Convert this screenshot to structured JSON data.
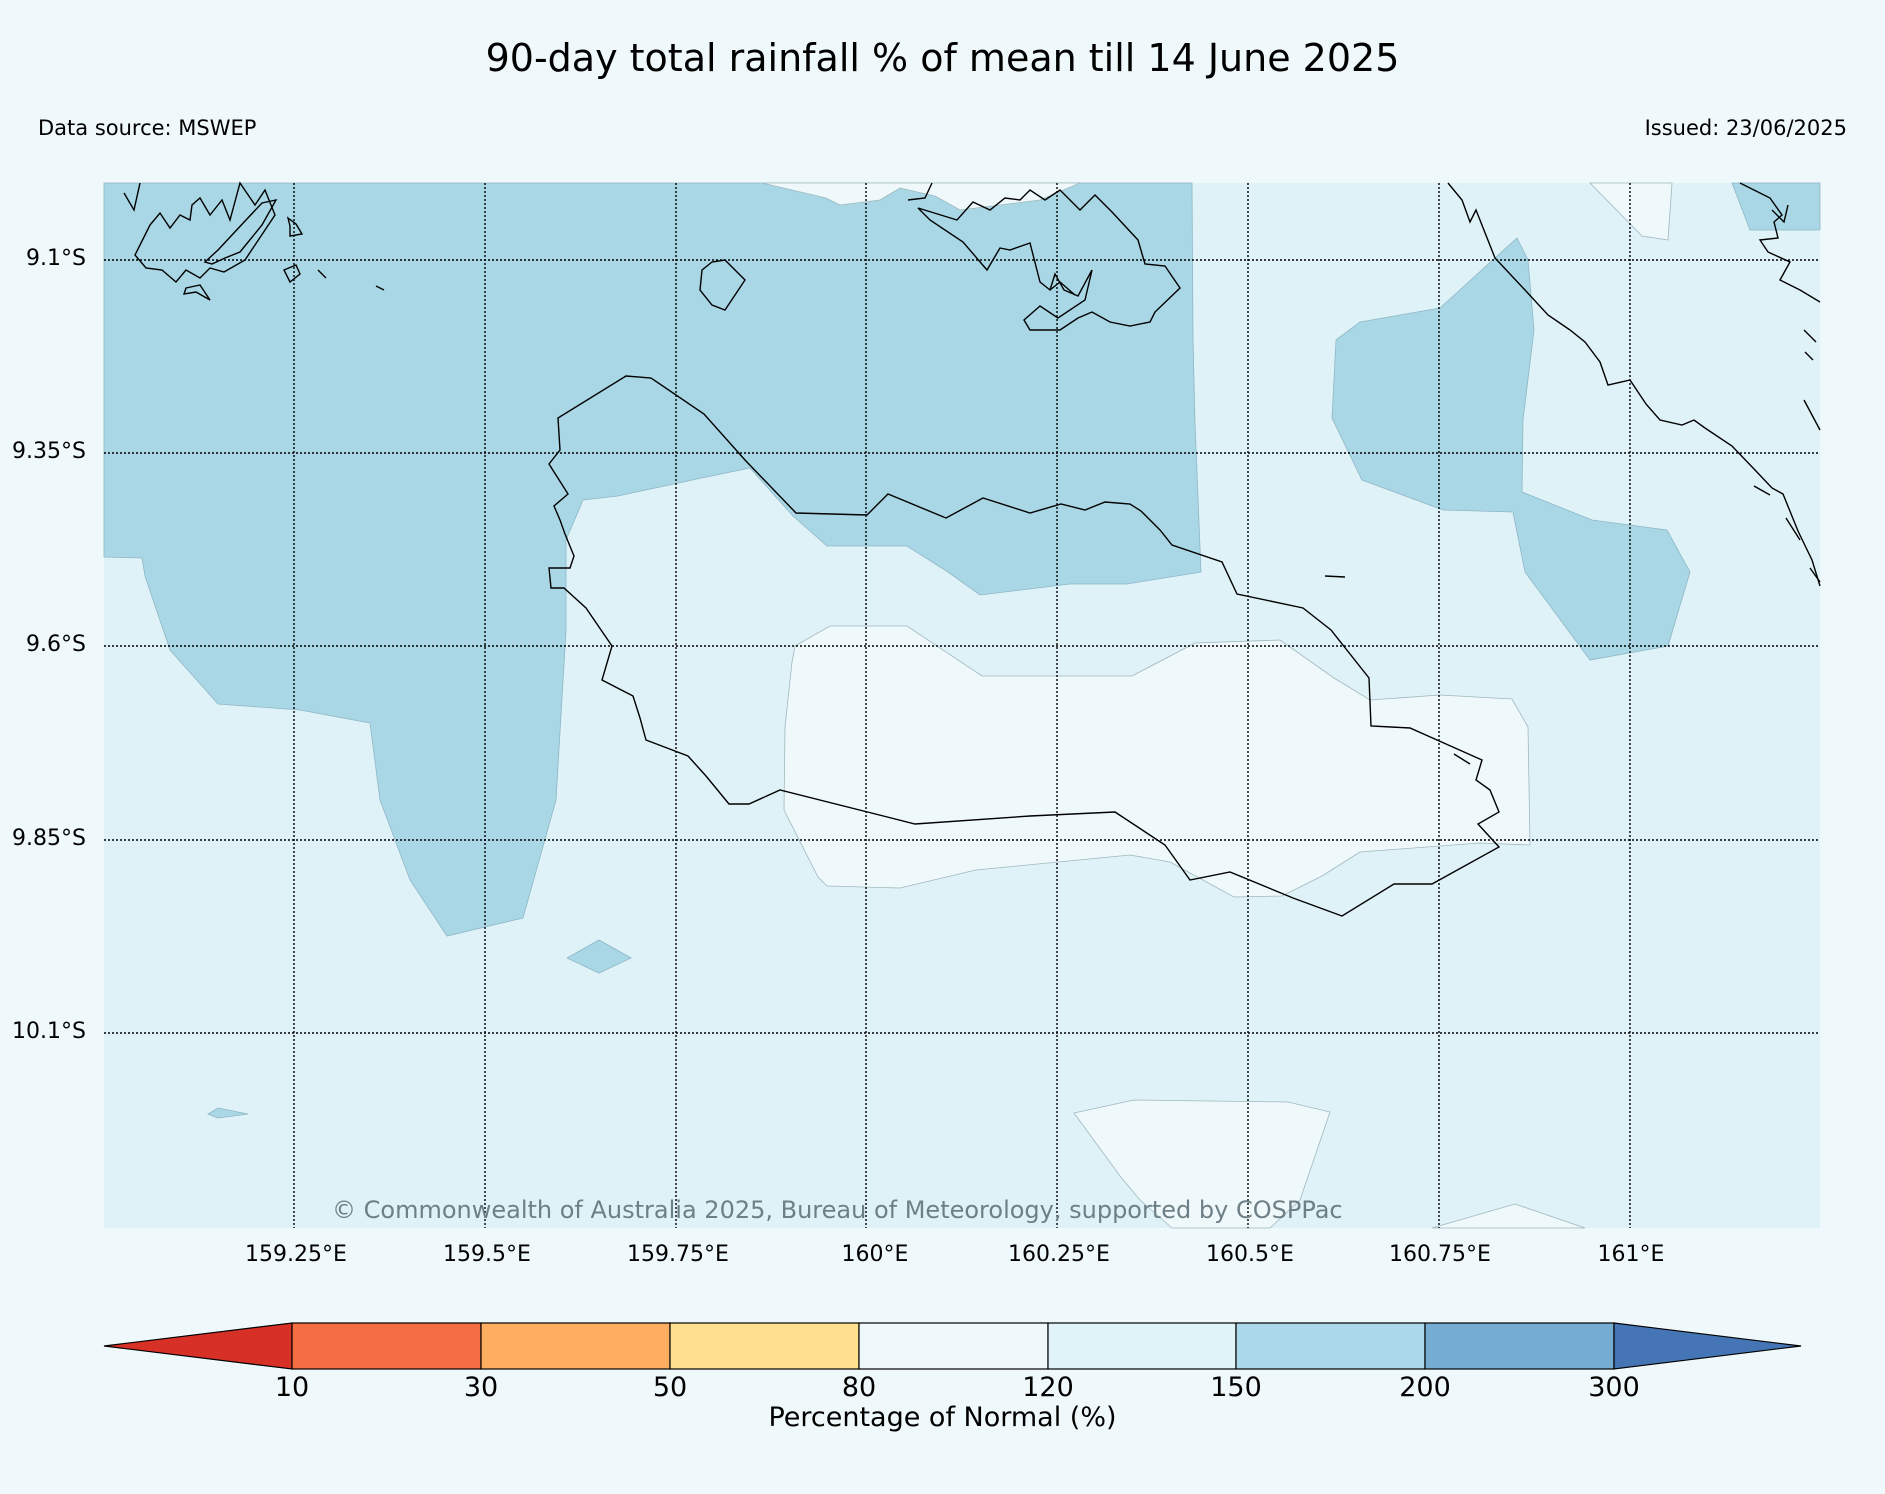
{
  "header": {
    "title": "90-day total rainfall % of mean till 14 June 2025",
    "data_source": "Data source: MSWEP",
    "issued": "Issued: 23/06/2025"
  },
  "map": {
    "lat_labels": [
      "9.1°S",
      "9.35°S",
      "9.6°S",
      "9.85°S",
      "10.1°S"
    ],
    "lon_labels": [
      "159.25°E",
      "159.5°E",
      "159.75°E",
      "160°E",
      "160.25°E",
      "160.5°E",
      "160.75°E",
      "161°E"
    ],
    "copyright": "© Commonwealth of Australia 2025, Bureau of Meteorology, supported by COSPPac",
    "shading_colors": {
      "80-120": "#eff8fa",
      "120-150": "#dff2f7",
      "150-200": "#a9d7e6"
    }
  },
  "colorbar": {
    "title": "Percentage of Normal (%)",
    "ticks": [
      "10",
      "30",
      "50",
      "80",
      "120",
      "150",
      "200",
      "300"
    ],
    "colors": [
      "#d73027",
      "#f46d43",
      "#fdae61",
      "#fee090",
      "#eff8fa",
      "#e0f3f8",
      "#abd9e9",
      "#74add1",
      "#4575b4"
    ]
  }
}
